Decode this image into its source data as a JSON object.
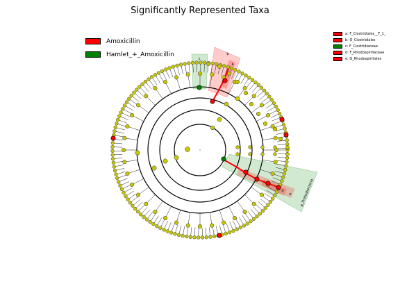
{
  "chart_data": {
    "type": "cladogram",
    "title": "Significantly Represented Taxa",
    "groups": [
      {
        "name": "Amoxicillin",
        "color": "#ff0000"
      },
      {
        "name": "Hamlet_+_Amoxicillin",
        "color": "#008000"
      }
    ],
    "key": [
      {
        "letter": "a",
        "label": "a: F_Clostridiales__F_1_",
        "group": "Amoxicillin"
      },
      {
        "letter": "b",
        "label": "b: O_Clostridiales",
        "group": "Amoxicillin"
      },
      {
        "letter": "c",
        "label": "c: F_Clostridiaceae",
        "group": "Hamlet_+_Amoxicillin"
      },
      {
        "letter": "d",
        "label": "d: F_Rhodospirillaceae",
        "group": "Amoxicillin"
      },
      {
        "letter": "e",
        "label": "e: O_Rhodospirillales",
        "group": "Amoxicillin"
      }
    ],
    "clade_labels": {
      "a": "a",
      "b": "b",
      "c": "c",
      "d": "d",
      "e": "e",
      "p_proteobacteria": "p_Proteobacteria"
    },
    "node_color": "#c8c800",
    "legend_placement": "top-left"
  }
}
